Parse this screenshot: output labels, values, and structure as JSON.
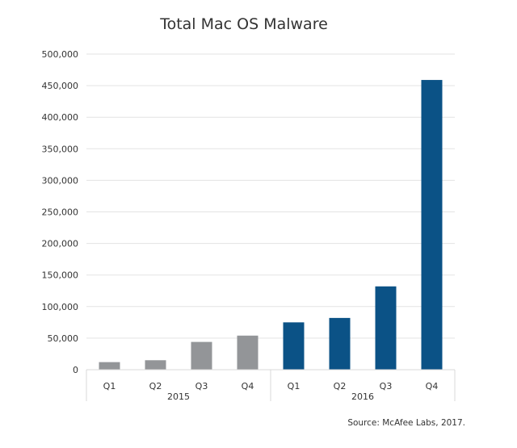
{
  "chart_data": {
    "type": "bar",
    "title": "Total Mac OS Malware",
    "categories": [
      "Q1",
      "Q2",
      "Q3",
      "Q4",
      "Q1",
      "Q2",
      "Q3",
      "Q4"
    ],
    "groups": [
      {
        "label": "2015",
        "count": 4,
        "color": "#939598"
      },
      {
        "label": "2016",
        "count": 4,
        "color": "#0b5286"
      }
    ],
    "values": [
      12000,
      15000,
      44000,
      54000,
      75000,
      82000,
      132000,
      459000
    ],
    "ylim": [
      0,
      500000
    ],
    "yticks": [
      0,
      50000,
      100000,
      150000,
      200000,
      250000,
      300000,
      350000,
      400000,
      450000,
      500000
    ],
    "ytick_labels": [
      "0",
      "50,000",
      "100,000",
      "150,000",
      "200,000",
      "250,000",
      "300,000",
      "350,000",
      "400,000",
      "450,000",
      "500,000"
    ],
    "xlabel": "",
    "ylabel": "",
    "grid": true,
    "source": "Source: McAfee Labs, 2017."
  }
}
